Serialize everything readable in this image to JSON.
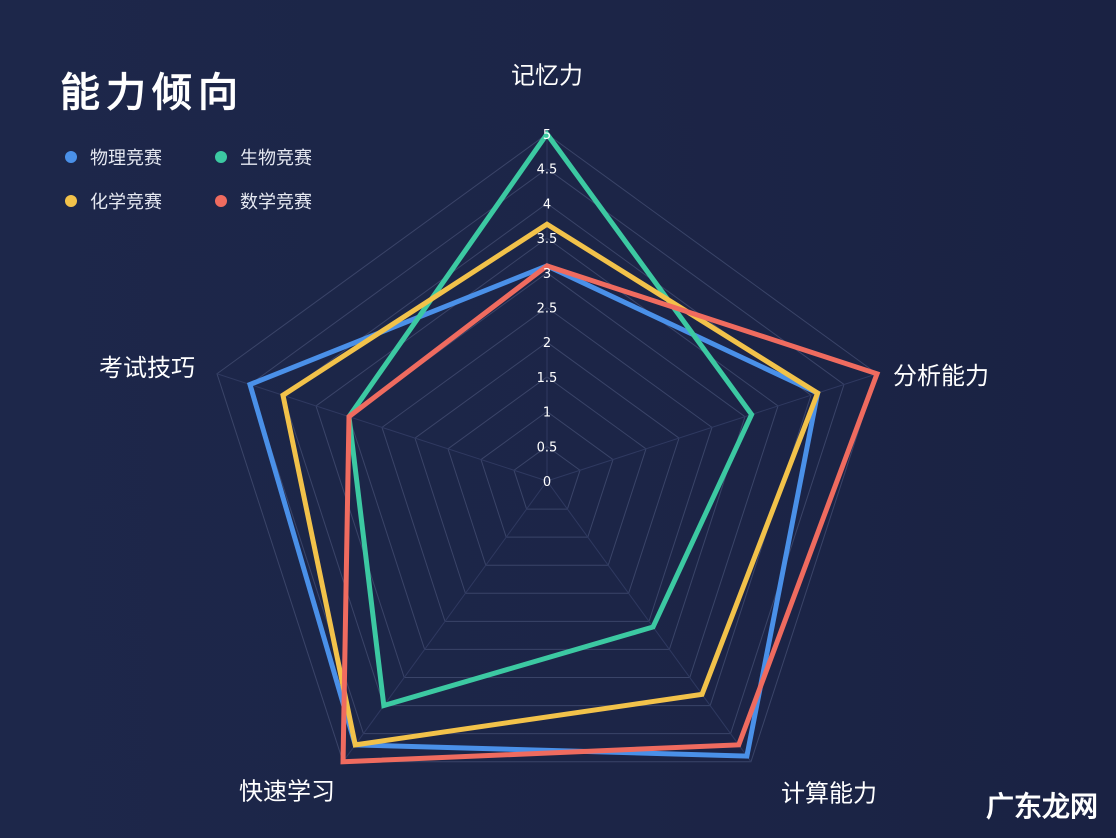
{
  "chart_data": {
    "type": "radar",
    "title": "能力倾向",
    "axes": [
      "记忆力",
      "分析能力",
      "计算能力",
      "快速学习",
      "考试技巧"
    ],
    "ticks": [
      "0",
      "0.5",
      "1",
      "1.5",
      "2",
      "2.5",
      "3",
      "3.5",
      "4",
      "4.5",
      "5"
    ],
    "range": [
      0,
      5
    ],
    "grid": true,
    "legend_position": "top-left",
    "series": [
      {
        "name": "物理竞赛",
        "color": "#4a90e8",
        "values": [
          3.1,
          4.1,
          4.9,
          4.7,
          4.5
        ]
      },
      {
        "name": "生物竞赛",
        "color": "#3cc9a2",
        "values": [
          5.0,
          3.1,
          2.6,
          4.0,
          3.0
        ]
      },
      {
        "name": "化学竞赛",
        "color": "#f2c24a",
        "values": [
          3.7,
          4.1,
          3.8,
          4.7,
          4.0
        ]
      },
      {
        "name": "数学竞赛",
        "color": "#ef6b5f",
        "values": [
          3.1,
          5.0,
          4.7,
          5.0,
          3.0
        ]
      }
    ]
  },
  "watermark": "广东龙网"
}
